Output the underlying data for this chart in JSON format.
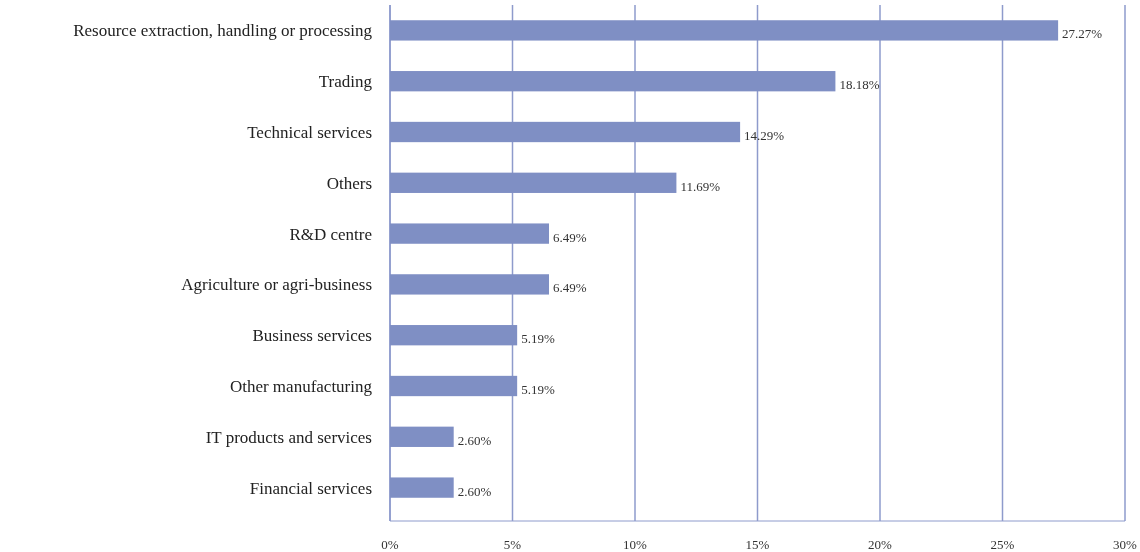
{
  "chart_data": {
    "type": "bar",
    "orientation": "horizontal",
    "categories": [
      "Resource extraction, handling or processing",
      "Trading",
      "Technical services",
      "Others",
      "R&D centre",
      "Agriculture or agri-business",
      "Business services",
      "Other manufacturing",
      "IT products and services",
      "Financial services"
    ],
    "values": [
      27.27,
      18.18,
      14.29,
      11.69,
      6.49,
      6.49,
      5.19,
      5.19,
      2.6,
      2.6
    ],
    "value_labels": [
      "27.27%",
      "18.18%",
      "14.29%",
      "11.69%",
      "6.49%",
      "6.49%",
      "5.19%",
      "5.19%",
      "2.60%",
      "2.60%"
    ],
    "color": "#7f8fc4",
    "xlim": [
      0,
      30
    ],
    "xticks": [
      {
        "value": 0,
        "label": "0%"
      },
      {
        "value": 5,
        "label": "5%"
      },
      {
        "value": 10,
        "label": "10%"
      },
      {
        "value": 15,
        "label": "15%"
      },
      {
        "value": 20,
        "label": "20%"
      },
      {
        "value": 25,
        "label": "25%"
      },
      {
        "value": 30,
        "label": "30%"
      }
    ],
    "grid": "x"
  }
}
